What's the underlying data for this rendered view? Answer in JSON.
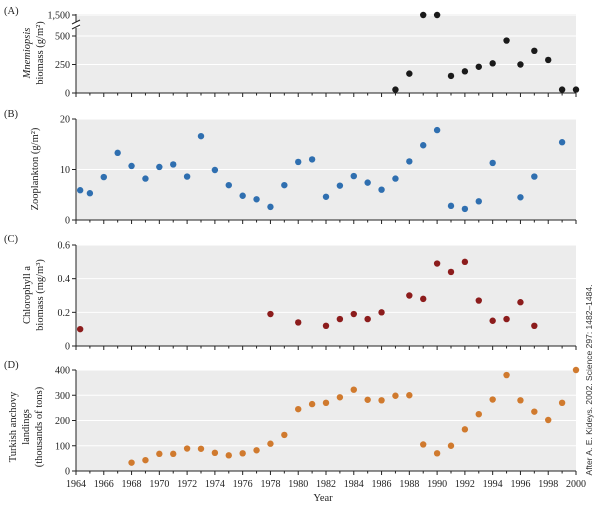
{
  "x_axis": {
    "title": "Year",
    "ticks": [
      "1964",
      "1966",
      "1968",
      "1970",
      "1972",
      "1974",
      "1976",
      "1978",
      "1980",
      "1982",
      "1984",
      "1986",
      "1988",
      "1990",
      "1992",
      "1994",
      "1996",
      "1998",
      "2000"
    ],
    "range": [
      1964,
      2000
    ]
  },
  "credit": "After A. E. Kideys. 2002. Science 297: 1482–1484.",
  "chart_data": [
    {
      "type": "scatter",
      "panel": "(A)",
      "ylabel_line1": "Mnemiopsis",
      "ylabel_line2": "biomass (g/m²)",
      "ylim": [
        0,
        1500
      ],
      "yticks": [
        "0",
        "250",
        "500",
        "1,500"
      ],
      "y_axis_break": true,
      "color": "#1a1a1a",
      "x": [
        1987,
        1988,
        1989,
        1990,
        1991,
        1992,
        1993,
        1994,
        1995,
        1996,
        1997,
        1998,
        1999,
        2000
      ],
      "y": [
        30,
        170,
        1500,
        1500,
        150,
        190,
        230,
        260,
        460,
        250,
        370,
        290,
        30,
        30
      ]
    },
    {
      "type": "scatter",
      "panel": "(B)",
      "ylabel": "Zooplankton (g/m²)",
      "ylim": [
        0,
        20
      ],
      "yticks": [
        "0",
        "10",
        "20"
      ],
      "color": "#2f6fb0",
      "x": [
        1964.3,
        1965,
        1966,
        1967,
        1968,
        1969,
        1970,
        1971,
        1972,
        1973,
        1974,
        1975,
        1976,
        1977,
        1978,
        1979,
        1980,
        1981,
        1982,
        1983,
        1984,
        1985,
        1986,
        1987,
        1988,
        1989,
        1990,
        1991,
        1992,
        1993,
        1994,
        1996,
        1997,
        1999
      ],
      "y": [
        5.9,
        5.3,
        8.5,
        13.3,
        10.7,
        8.2,
        10.5,
        11,
        8.6,
        16.6,
        9.9,
        6.9,
        4.8,
        4.1,
        2.6,
        6.9,
        11.5,
        12,
        4.6,
        6.8,
        8.7,
        7.4,
        6,
        8.2,
        11.6,
        14.8,
        17.8,
        2.8,
        2.2,
        3.7,
        11.3,
        4.5,
        8.6,
        15.4
      ]
    },
    {
      "type": "scatter",
      "panel": "(C)",
      "ylabel_line1": "Chlorophyll a",
      "ylabel_line2": "biomass (mg/m³)",
      "ylim": [
        0,
        0.6
      ],
      "yticks": [
        "0",
        "0.2",
        "0.4",
        "0.6"
      ],
      "color": "#8c1c1c",
      "x": [
        1964.3,
        1978,
        1980,
        1982,
        1983,
        1984,
        1985,
        1986,
        1988,
        1989,
        1990,
        1991,
        1992,
        1993,
        1994,
        1995,
        1996,
        1997
      ],
      "y": [
        0.1,
        0.19,
        0.14,
        0.12,
        0.16,
        0.19,
        0.16,
        0.2,
        0.3,
        0.28,
        0.49,
        0.44,
        0.5,
        0.27,
        0.15,
        0.16,
        0.26,
        0.12
      ]
    },
    {
      "type": "scatter",
      "panel": "(D)",
      "ylabel_line1": "Turkish anchovy",
      "ylabel_line2": "landings",
      "ylabel_line3": "(thousands of tons)",
      "ylim": [
        0,
        400
      ],
      "yticks": [
        "0",
        "100",
        "200",
        "300",
        "400"
      ],
      "color": "#d07a2e",
      "x": [
        1968,
        1969,
        1970,
        1971,
        1972,
        1973,
        1974,
        1975,
        1976,
        1977,
        1978,
        1979,
        1980,
        1981,
        1982,
        1983,
        1984,
        1985,
        1986,
        1987,
        1988,
        1989,
        1990,
        1991,
        1992,
        1993,
        1994,
        1995,
        1996,
        1997,
        1998,
        1999,
        2000
      ],
      "y": [
        33,
        43,
        68,
        68,
        89,
        88,
        72,
        62,
        70,
        82,
        108,
        143,
        245,
        265,
        270,
        292,
        322,
        282,
        280,
        298,
        300,
        105,
        70,
        100,
        165,
        225,
        283,
        380,
        280,
        235,
        202,
        270,
        400
      ]
    }
  ]
}
